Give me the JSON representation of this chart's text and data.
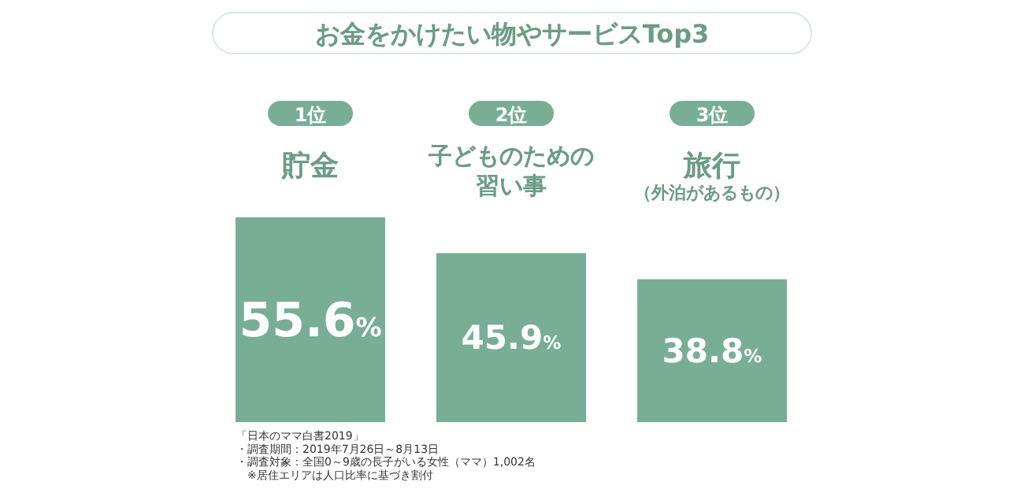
{
  "chart_data": {
    "type": "bar",
    "title": "お金をかけたい物やサービスTop3",
    "categories": [
      "貯金",
      "子どものための習い事",
      "旅行（外泊があるもの）"
    ],
    "values": [
      55.6,
      45.9,
      38.8
    ],
    "value_labels": [
      "55.6%",
      "45.9%",
      "38.8%"
    ],
    "color": "#78ae96",
    "annotations": [
      "1位",
      "2位",
      "3位",
      "「日本のママ白書2019」",
      "・調査期間：2019年7月26日～8月13日",
      "・調査対象：全国0～9歳の長子がいる女性（ママ）1,002名",
      "　※居住エリアは人口比率に基づき割付"
    ]
  }
}
